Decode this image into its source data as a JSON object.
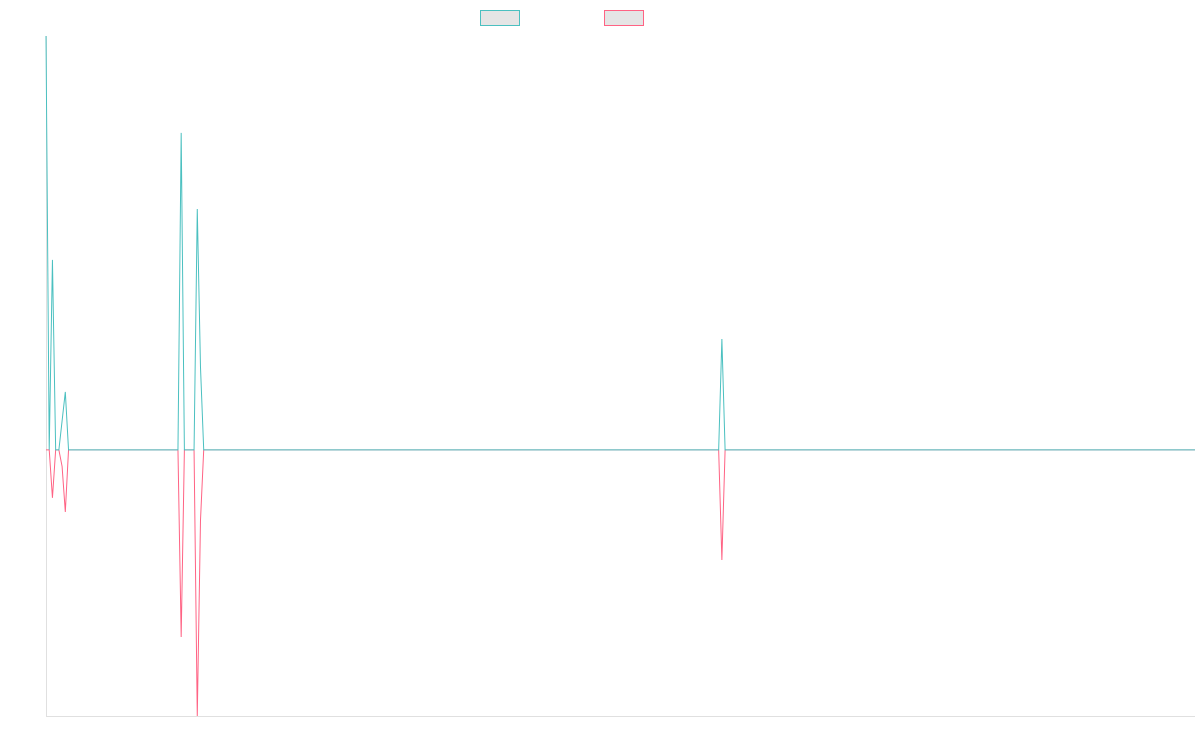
{
  "chart_data": {
    "type": "line",
    "title": "",
    "xlabel": "",
    "ylabel": "",
    "point_count": 358,
    "ylim": [
      -0.643,
      1.0
    ],
    "grid": false,
    "legend_position": "top",
    "series": [
      {
        "name": "",
        "color": "#4bc0c0",
        "nonzero": {
          "0": 1.0,
          "2": 0.459,
          "5": 0.07,
          "6": 0.14,
          "42": 0.766,
          "47": 0.582,
          "48": 0.2,
          "210": 0.268
        }
      },
      {
        "name": "",
        "color": "#ff6384",
        "nonzero": {
          "2": -0.116,
          "5": -0.04,
          "6": -0.15,
          "42": -0.452,
          "47": -0.643,
          "48": -0.17,
          "210": -0.266
        }
      }
    ]
  }
}
